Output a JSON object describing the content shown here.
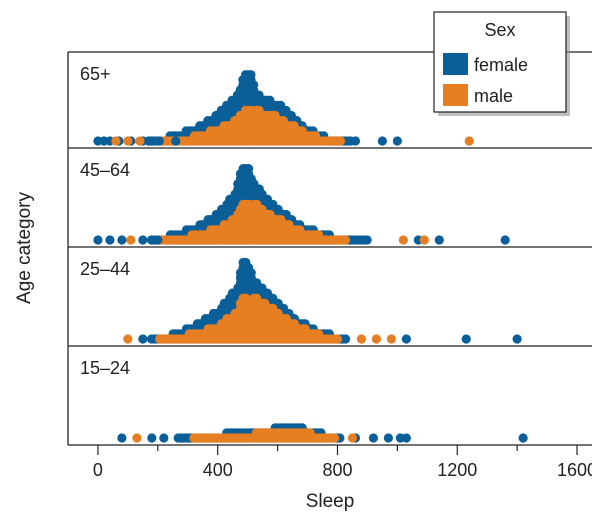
{
  "chart_data": {
    "type": "scatter",
    "subtype": "stacked dot plot (beeswarm)",
    "xlabel": "Sleep",
    "ylabel": "Age category",
    "xlim": [
      -100,
      1650
    ],
    "xticks": [
      0,
      400,
      800,
      1200,
      1600
    ],
    "xtick_labels": [
      "0",
      "400",
      "800",
      "1200",
      "1600"
    ],
    "x_minor_ticks": [
      200,
      600,
      1000,
      1400
    ],
    "grid": false,
    "legend": {
      "title": "Sex",
      "placement": "top-right",
      "entries": [
        {
          "label": "female",
          "color": "#0a5f99"
        },
        {
          "label": "male",
          "color": "#e67e22"
        }
      ]
    },
    "panels": [
      {
        "label": "65+",
        "female_outliers": [
          0,
          20,
          40,
          70,
          110,
          150,
          180,
          205,
          260,
          860,
          950,
          1000
        ],
        "male_outliers": [
          60,
          100,
          140,
          770,
          810,
          1240
        ],
        "profile": [
          [
            160,
            0.5
          ],
          [
            240,
            1.5
          ],
          [
            320,
            3
          ],
          [
            400,
            6
          ],
          [
            440,
            8
          ],
          [
            470,
            10
          ],
          [
            490,
            14
          ],
          [
            510,
            14
          ],
          [
            530,
            10
          ],
          [
            560,
            9
          ],
          [
            600,
            8
          ],
          [
            640,
            6
          ],
          [
            700,
            3
          ],
          [
            760,
            1.5
          ],
          [
            840,
            0.6
          ],
          [
            870,
            0
          ]
        ],
        "male_share": 0.5
      },
      {
        "label": "45–64",
        "female_outliers": [
          0,
          40,
          80,
          150,
          200,
          1070,
          1140,
          1360
        ],
        "male_outliers": [
          110,
          1020,
          1090
        ],
        "profile": [
          [
            170,
            0.5
          ],
          [
            240,
            1.5
          ],
          [
            320,
            3
          ],
          [
            380,
            5
          ],
          [
            420,
            7
          ],
          [
            460,
            10
          ],
          [
            480,
            15
          ],
          [
            500,
            15
          ],
          [
            520,
            12
          ],
          [
            560,
            9
          ],
          [
            600,
            7
          ],
          [
            660,
            4
          ],
          [
            720,
            2.5
          ],
          [
            800,
            1.2
          ],
          [
            900,
            0.5
          ],
          [
            1000,
            0
          ]
        ],
        "male_share": 0.52
      },
      {
        "label": "25–44",
        "female_outliers": [
          150,
          1030,
          1230,
          1400
        ],
        "male_outliers": [
          100,
          880,
          930,
          980
        ],
        "profile": [
          [
            170,
            0.5
          ],
          [
            250,
            1.5
          ],
          [
            330,
            3.5
          ],
          [
            400,
            6
          ],
          [
            440,
            9
          ],
          [
            470,
            11
          ],
          [
            480,
            16
          ],
          [
            500,
            16
          ],
          [
            520,
            12
          ],
          [
            560,
            10
          ],
          [
            600,
            8
          ],
          [
            650,
            5
          ],
          [
            720,
            2.5
          ],
          [
            800,
            1
          ],
          [
            860,
            0
          ]
        ],
        "male_share": 0.55
      },
      {
        "label": "15–24",
        "female_outliers": [
          80,
          180,
          220,
          280,
          860,
          920,
          970,
          1010,
          1030,
          1420
        ],
        "male_outliers": [
          130,
          320,
          850
        ],
        "profile": [
          [
            250,
            0.4
          ],
          [
            340,
            1
          ],
          [
            440,
            1.6
          ],
          [
            520,
            2
          ],
          [
            580,
            2.4
          ],
          [
            630,
            3
          ],
          [
            680,
            2.6
          ],
          [
            740,
            1.6
          ],
          [
            800,
            0.8
          ],
          [
            840,
            0
          ]
        ],
        "male_share": 0.55
      }
    ]
  }
}
